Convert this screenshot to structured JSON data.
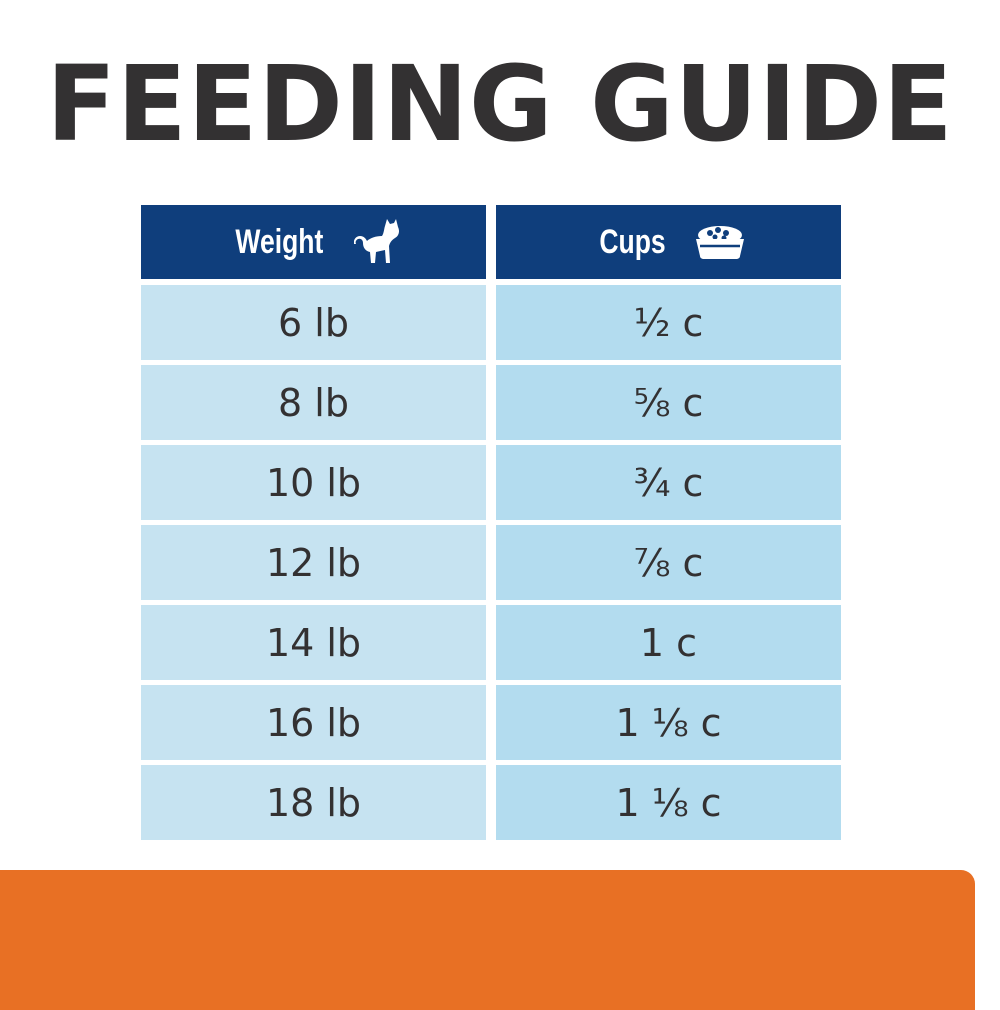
{
  "title": "FEEDING GUIDE",
  "table": {
    "headers": {
      "weight": "Weight",
      "weight_icon": "cat-icon",
      "cups": "Cups",
      "cups_icon": "food-bowl-icon"
    },
    "rows": [
      {
        "weight": "6 lb",
        "cups": "½ c"
      },
      {
        "weight": "8 lb",
        "cups": "⅝ c"
      },
      {
        "weight": "10 lb",
        "cups": "¾ c"
      },
      {
        "weight": "12 lb",
        "cups": "⅞ c"
      },
      {
        "weight": "14 lb",
        "cups": "1 c"
      },
      {
        "weight": "16 lb",
        "cups": "1 ⅛ c"
      },
      {
        "weight": "18 lb",
        "cups": "1 ⅛ c"
      }
    ]
  },
  "colors": {
    "title": "#333132",
    "header_bg": "#0f3e7c",
    "weight_cell_bg": "#c6e3f1",
    "cups_cell_bg": "#b3dcef",
    "accent_band": "#e87024"
  }
}
